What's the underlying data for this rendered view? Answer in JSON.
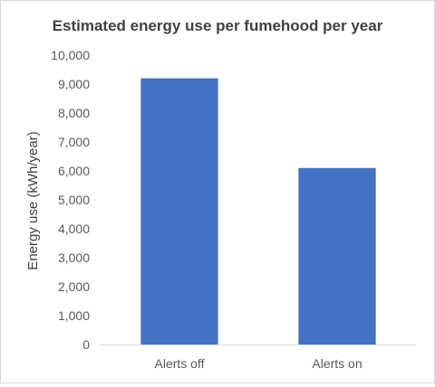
{
  "chart_data": {
    "type": "bar",
    "title": "Estimated energy use per fumehood per year",
    "xlabel": "",
    "ylabel": "Energy use (kWh/year)",
    "categories": [
      "Alerts off",
      "Alerts on"
    ],
    "values": [
      9200,
      6100
    ],
    "ylim": [
      0,
      10000
    ],
    "yticks": [
      "0",
      "1,000",
      "2,000",
      "3,000",
      "4,000",
      "5,000",
      "6,000",
      "7,000",
      "8,000",
      "9,000",
      "10,000"
    ],
    "grid": false,
    "legend": "none",
    "bar_color": "#4472c4"
  }
}
